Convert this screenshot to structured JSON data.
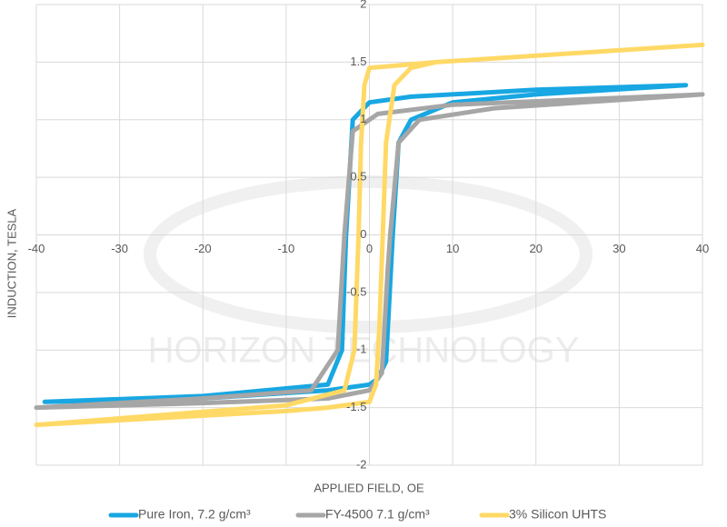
{
  "chart_data": {
    "type": "line",
    "x_label": "APPLIED FIELD, OE",
    "y_label": "INDUCTION, TESLA",
    "watermark": "HORIZON TECHNOLOGY",
    "xlim": [
      -40,
      40
    ],
    "xticks": [
      -40,
      -30,
      -20,
      -10,
      0,
      10,
      20,
      30,
      40
    ],
    "ylim": [
      -2,
      2
    ],
    "yticks": [
      -2,
      -1.5,
      -1,
      -0.5,
      0,
      0.5,
      1,
      1.5,
      2
    ],
    "grid": true,
    "legend": "bottom",
    "series": [
      {
        "name": "Pure Iron, 7.2 g/cm³",
        "color": "#18A7E2",
        "x": [
          38,
          20,
          5,
          0,
          -2,
          -2.8,
          -3.3,
          -5,
          -20,
          -39,
          -20,
          -5,
          0,
          1,
          2,
          2.8,
          3.5,
          5,
          10,
          20,
          38
        ],
        "values": [
          1.3,
          1.26,
          1.2,
          1.15,
          1.0,
          0,
          -1.0,
          -1.3,
          -1.4,
          -1.45,
          -1.42,
          -1.35,
          -1.3,
          -1.25,
          -1.1,
          0,
          0.8,
          1.0,
          1.15,
          1.22,
          1.3
        ]
      },
      {
        "name": "FY-4500 7.1 g/cm³",
        "color": "#A6A6A6",
        "x": [
          40,
          10,
          1,
          -2,
          -3,
          -3.8,
          -7,
          -20,
          -40,
          -20,
          -5,
          0,
          1.5,
          2.2,
          2.5,
          3.5,
          6,
          15,
          40
        ],
        "values": [
          1.22,
          1.13,
          1.05,
          0.9,
          0,
          -1.0,
          -1.35,
          -1.42,
          -1.5,
          -1.46,
          -1.42,
          -1.35,
          -1.2,
          -0.3,
          0,
          0.8,
          1.0,
          1.1,
          1.22
        ]
      },
      {
        "name": "3% Silicon UHTS",
        "color": "#FFD966",
        "x": [
          40,
          8,
          0,
          -0.6,
          -1,
          -1.3,
          -1.8,
          -3,
          -10,
          -40,
          -10,
          -5,
          0,
          0.8,
          1.2,
          1.6,
          2,
          3,
          5,
          8,
          40
        ],
        "values": [
          1.65,
          1.5,
          1.45,
          1.3,
          0.8,
          0,
          -1.0,
          -1.35,
          -1.48,
          -1.65,
          -1.53,
          -1.5,
          -1.45,
          -1.3,
          -0.8,
          0,
          0.8,
          1.3,
          1.45,
          1.5,
          1.65
        ]
      }
    ]
  }
}
